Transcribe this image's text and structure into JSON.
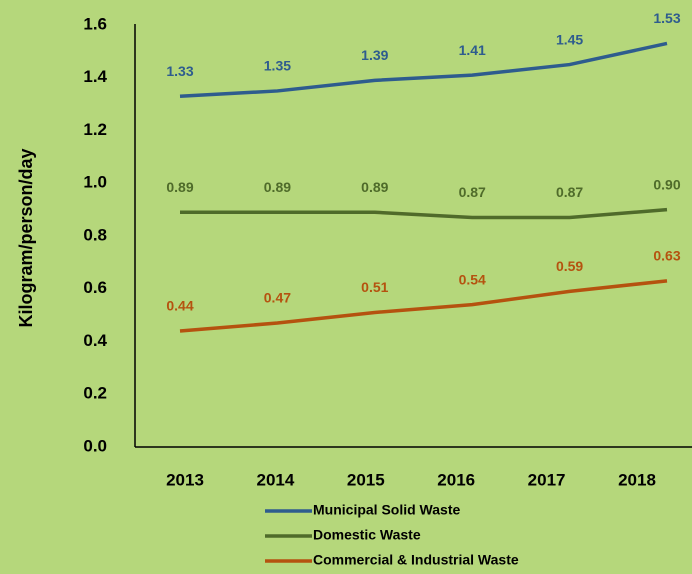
{
  "chart_data": {
    "type": "line",
    "y_label": "Kilogram/person/day",
    "categories": [
      "2013",
      "2014",
      "2015",
      "2016",
      "2017",
      "2018"
    ],
    "series": [
      {
        "name": "Municipal Solid Waste",
        "color": "#2e5c8e",
        "values": [
          1.33,
          1.35,
          1.39,
          1.41,
          1.45,
          1.53
        ]
      },
      {
        "name": "Domestic Waste",
        "color": "#4f6b2a",
        "values": [
          0.89,
          0.89,
          0.89,
          0.87,
          0.87,
          0.9
        ],
        "value_labels": [
          "0.89",
          "0.89",
          "0.89",
          "0.87",
          "0.87",
          "0.90"
        ]
      },
      {
        "name": "Commercial & Industrial Waste",
        "color": "#b5520f",
        "values": [
          0.44,
          0.47,
          0.51,
          0.54,
          0.59,
          0.63
        ]
      }
    ],
    "ylim": [
      0,
      1.6
    ],
    "yticks": [
      {
        "value": 0,
        "label": "0.0"
      },
      0.2,
      0.4,
      0.6,
      0.8,
      {
        "value": 1,
        "label": "1.0"
      },
      1.2,
      1.4,
      1.6
    ],
    "legend": "bottom"
  }
}
